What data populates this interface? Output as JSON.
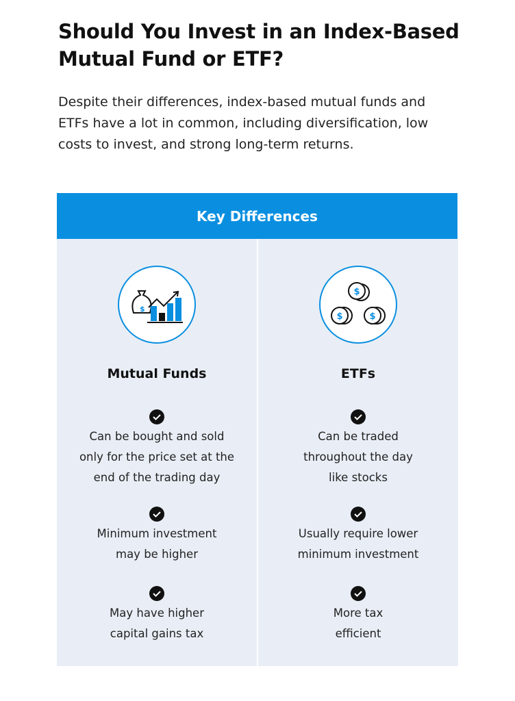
{
  "title": [
    "Should You Invest in an Index-Based",
    "Mutual Fund or ETF?"
  ],
  "intro": [
    "Despite their differences, index-based mutual funds and",
    "ETFs have a lot in common, including diversification, low",
    "costs to invest, and strong long-term returns."
  ],
  "table": {
    "header": "Key Differences",
    "columns": [
      {
        "title": "Mutual Funds",
        "items": [
          [
            "Can be bought and sold",
            "only for the price set at the",
            "end of the trading day"
          ],
          [
            "Minimum investment",
            "may be higher"
          ],
          [
            "May have higher",
            "capital gains tax"
          ]
        ]
      },
      {
        "title": "ETFs",
        "items": [
          [
            "Can be traded",
            "throughout the day",
            "like stocks"
          ],
          [
            "Usually require lower",
            "minimum investment"
          ],
          [
            "More tax",
            "efficient"
          ]
        ]
      }
    ]
  }
}
